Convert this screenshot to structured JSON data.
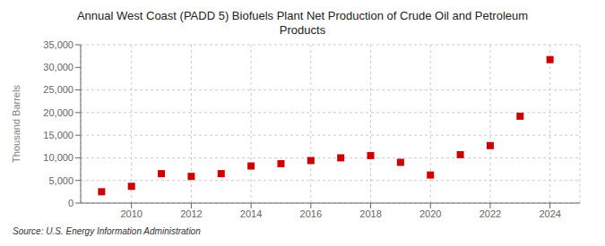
{
  "chart_data": {
    "type": "scatter",
    "title": "Annual West Coast (PADD 5) Biofuels Plant Net Production of Crude Oil and Petroleum\nProducts",
    "ylabel": "Thousand Barrels",
    "source": "Source: U.S. Energy Information Administration",
    "x": [
      2009,
      2010,
      2011,
      2012,
      2013,
      2014,
      2015,
      2016,
      2017,
      2018,
      2019,
      2020,
      2021,
      2022,
      2023,
      2024
    ],
    "values": [
      2500,
      3700,
      6500,
      5900,
      6500,
      8200,
      8700,
      9400,
      10000,
      10500,
      9000,
      6200,
      10700,
      12700,
      19200,
      31700
    ],
    "color": "#cc0000",
    "marker": "square",
    "xlim": [
      2008.3,
      2025.0
    ],
    "xticks": [
      2010,
      2012,
      2014,
      2016,
      2018,
      2020,
      2022,
      2024
    ],
    "ylim": [
      0,
      35000
    ],
    "yticks": [
      0,
      {
        "value": 5000,
        "label": "5,000"
      },
      {
        "value": 10000,
        "label": "10,000"
      },
      {
        "value": 15000,
        "label": "15,000"
      },
      {
        "value": 20000,
        "label": "20,000"
      },
      {
        "value": 25000,
        "label": "25,000"
      },
      {
        "value": 30000,
        "label": "30,000"
      },
      {
        "value": 35000,
        "label": "35,000"
      }
    ],
    "grid": true
  }
}
